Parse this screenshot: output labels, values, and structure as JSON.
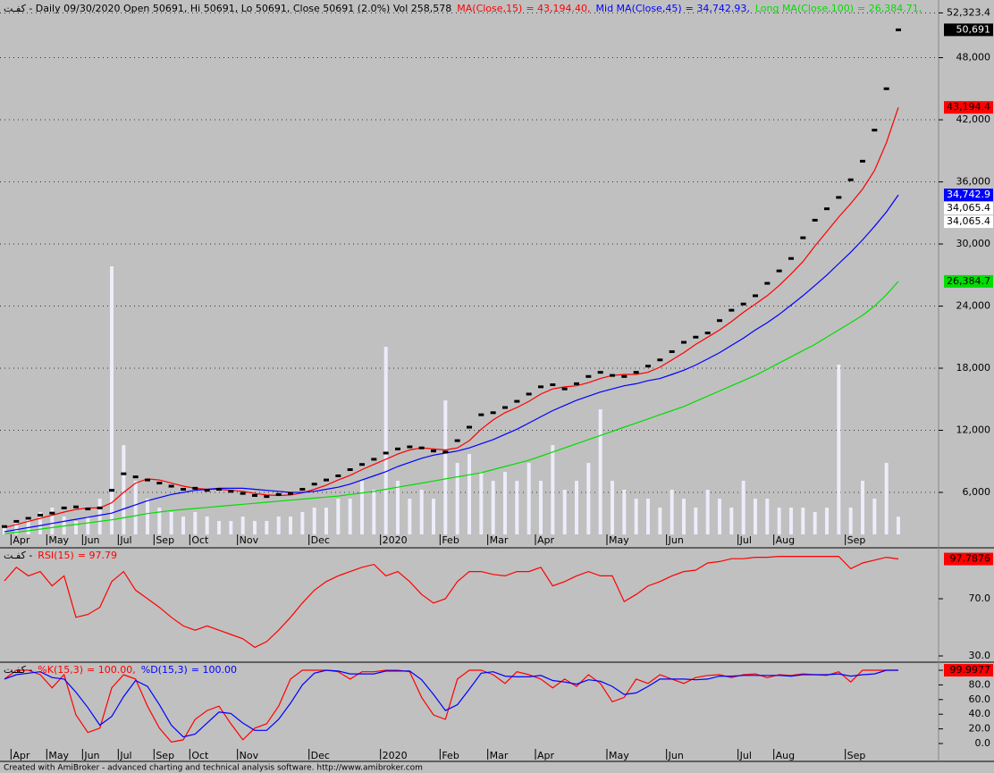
{
  "chart_data": [
    {
      "type": "price",
      "title": "كفـت - Daily 09/30/2020 Open 50691, Hi 50691, Lo 50691, Close 50691 (2.0%) Vol 258,578",
      "categories": [
        null,
        "Apr",
        null,
        null,
        "May",
        null,
        null,
        "Jun",
        null,
        null,
        "Jul",
        null,
        null,
        "Sep",
        null,
        null,
        "Oct",
        null,
        null,
        null,
        "Nov",
        null,
        null,
        null,
        null,
        null,
        "Dec",
        null,
        null,
        null,
        null,
        null,
        "2020",
        null,
        null,
        null,
        null,
        "Feb",
        null,
        null,
        null,
        "Mar",
        null,
        null,
        null,
        "Apr",
        null,
        null,
        null,
        null,
        null,
        "May",
        null,
        null,
        null,
        null,
        "Jun",
        null,
        null,
        null,
        null,
        null,
        "Jul",
        null,
        null,
        "Aug",
        null,
        null,
        null,
        null,
        null,
        "Sep",
        null,
        null,
        null,
        null
      ],
      "ylim": [
        1942,
        53400
      ],
      "yticks": [
        {
          "value": 6000,
          "label": "6,000"
        },
        {
          "value": 12000,
          "label": "12,000"
        },
        {
          "value": 18000,
          "label": "18,000"
        },
        {
          "value": 24000,
          "label": "24,000"
        },
        {
          "value": 30000,
          "label": "30,000"
        },
        {
          "value": 36000,
          "label": "36,000"
        },
        {
          "value": 42000,
          "label": "42,000"
        },
        {
          "value": 48000,
          "label": "48,000"
        },
        {
          "value": 52323.4,
          "label": "52,323.4"
        }
      ],
      "grid": true,
      "close": {
        "color": "#000000",
        "axis_label": "50,691",
        "values": [
          2700,
          3200,
          3500,
          3800,
          4000,
          4500,
          4600,
          4400,
          4500,
          6200,
          7800,
          7500,
          7200,
          6900,
          6600,
          6300,
          6400,
          6200,
          6300,
          6100,
          5900,
          5700,
          5600,
          5800,
          5900,
          6300,
          6800,
          7200,
          7600,
          8200,
          8700,
          9200,
          9800,
          10200,
          10400,
          10300,
          10000,
          9900,
          11000,
          12300,
          13500,
          13700,
          14200,
          14800,
          15500,
          16200,
          16400,
          16000,
          16500,
          17200,
          17600,
          17300,
          17200,
          17600,
          18200,
          18800,
          19600,
          20500,
          21000,
          21400,
          22600,
          23600,
          24200,
          25000,
          26200,
          27400,
          28600,
          30600,
          32300,
          33400,
          34500,
          36200,
          38000,
          41000,
          45000,
          50691
        ]
      },
      "volume": {
        "color": "#ececfa",
        "lim": [
          0,
          7750000
        ],
        "values": [
          130000,
          195000,
          260000,
          325000,
          390000,
          260000,
          195000,
          260000,
          520000,
          3900000,
          1300000,
          780000,
          520000,
          390000,
          325000,
          260000,
          325000,
          260000,
          195000,
          195000,
          260000,
          195000,
          195000,
          260000,
          260000,
          325000,
          390000,
          390000,
          520000,
          520000,
          780000,
          650000,
          2730000,
          780000,
          520000,
          650000,
          520000,
          1950000,
          1040000,
          1170000,
          910000,
          780000,
          910000,
          780000,
          1040000,
          780000,
          1300000,
          650000,
          780000,
          1040000,
          1820000,
          780000,
          650000,
          520000,
          520000,
          390000,
          650000,
          520000,
          390000,
          650000,
          520000,
          390000,
          780000,
          520000,
          520000,
          390000,
          390000,
          390000,
          325000,
          390000,
          2470000,
          390000,
          780000,
          520000,
          1040000,
          258578
        ]
      },
      "series": [
        {
          "name": "MA(Close,15)",
          "color": "#ff0000",
          "legend_value": "= 43,194.40,",
          "axis_label": "43,194.4",
          "values": [
            2600,
            2900,
            3200,
            3500,
            3800,
            4100,
            4350,
            4500,
            4500,
            5000,
            6000,
            6900,
            7300,
            7200,
            6900,
            6600,
            6400,
            6300,
            6300,
            6200,
            6100,
            5900,
            5750,
            5700,
            5750,
            5950,
            6300,
            6700,
            7200,
            7650,
            8200,
            8700,
            9200,
            9700,
            10100,
            10300,
            10200,
            10100,
            10300,
            11000,
            12100,
            13000,
            13700,
            14200,
            14800,
            15500,
            16000,
            16200,
            16300,
            16600,
            17000,
            17300,
            17400,
            17400,
            17600,
            18100,
            18800,
            19500,
            20300,
            21000,
            21700,
            22500,
            23400,
            24200,
            25000,
            26000,
            27100,
            28300,
            29800,
            31200,
            32600,
            33900,
            35300,
            37100,
            39800,
            43194.4
          ]
        },
        {
          "name": "Mid MA(Close,45)",
          "color": "#0000ff",
          "legend_value": "= 34,742.93,",
          "axis_label": "34,742.9",
          "values": [
            2200,
            2400,
            2600,
            2800,
            3000,
            3200,
            3400,
            3600,
            3800,
            4000,
            4400,
            4800,
            5200,
            5500,
            5800,
            6000,
            6200,
            6300,
            6400,
            6400,
            6400,
            6300,
            6200,
            6100,
            6000,
            6000,
            6100,
            6300,
            6500,
            6800,
            7200,
            7600,
            8000,
            8500,
            8900,
            9300,
            9600,
            9800,
            10000,
            10300,
            10700,
            11100,
            11600,
            12100,
            12700,
            13300,
            13900,
            14400,
            14900,
            15300,
            15700,
            16000,
            16300,
            16500,
            16800,
            17000,
            17400,
            17800,
            18300,
            18900,
            19500,
            20200,
            20900,
            21700,
            22400,
            23200,
            24100,
            25000,
            26000,
            27000,
            28100,
            29200,
            30400,
            31700,
            33100,
            34742.9
          ]
        },
        {
          "name": "Long MA(Close,100)",
          "color": "#00dd00",
          "legend_value": "= 26,384.71,",
          "axis_label": "26,384.7",
          "values": [
            2000,
            2150,
            2300,
            2450,
            2600,
            2750,
            2900,
            3050,
            3200,
            3350,
            3550,
            3750,
            3950,
            4100,
            4250,
            4350,
            4450,
            4550,
            4650,
            4750,
            4850,
            4950,
            5050,
            5150,
            5250,
            5350,
            5450,
            5550,
            5650,
            5800,
            5950,
            6100,
            6300,
            6500,
            6700,
            6900,
            7100,
            7300,
            7500,
            7700,
            7900,
            8200,
            8500,
            8800,
            9100,
            9500,
            9900,
            10300,
            10700,
            11100,
            11500,
            11900,
            12300,
            12700,
            13100,
            13500,
            13900,
            14300,
            14800,
            15300,
            15800,
            16300,
            16800,
            17300,
            17900,
            18500,
            19100,
            19700,
            20300,
            21000,
            21700,
            22400,
            23100,
            24000,
            25100,
            26384.7
          ]
        }
      ],
      "markers": [
        {
          "value": 34065.4,
          "label": "34,065.4"
        },
        {
          "value": 34065.4,
          "label": "34,065.4"
        }
      ]
    },
    {
      "type": "line",
      "title": "كفـت -",
      "ylim": [
        26.25,
        105
      ],
      "yticks": [
        {
          "value": 30,
          "label": "30.0"
        },
        {
          "value": 70,
          "label": "70.0"
        }
      ],
      "series": [
        {
          "name": "RSI(15)",
          "color": "#ff0000",
          "legend_value": "= 97.79",
          "axis_label": "97.7876",
          "values": [
            82.5,
            92,
            86,
            89,
            79,
            86,
            57,
            59,
            64,
            82,
            89,
            76,
            70,
            64,
            57,
            51,
            48,
            51,
            48,
            45,
            42,
            36,
            40,
            48,
            57,
            67,
            76,
            82,
            86,
            89,
            92,
            94,
            86,
            89,
            82,
            73,
            67,
            70,
            82,
            89,
            89,
            87,
            86,
            89,
            89,
            92,
            79,
            82,
            86,
            89,
            86,
            86,
            68,
            73,
            79,
            82,
            86,
            89,
            90,
            95,
            96,
            98,
            98,
            99,
            99,
            99.6,
            99.6,
            99.6,
            99.6,
            99.6,
            99.6,
            91,
            95,
            97,
            99,
            97.7876
          ]
        }
      ]
    },
    {
      "type": "line",
      "title": "كفـت -",
      "categories": [
        null,
        "Apr",
        null,
        null,
        "May",
        null,
        null,
        "Jun",
        null,
        null,
        "Jul",
        null,
        null,
        "Sep",
        null,
        null,
        "Oct",
        null,
        null,
        null,
        "Nov",
        null,
        null,
        null,
        null,
        null,
        "Dec",
        null,
        null,
        null,
        null,
        null,
        "2020",
        null,
        null,
        null,
        null,
        "Feb",
        null,
        null,
        null,
        "Mar",
        null,
        null,
        null,
        "Apr",
        null,
        null,
        null,
        null,
        null,
        "May",
        null,
        null,
        null,
        null,
        "Jun",
        null,
        null,
        null,
        null,
        null,
        "Jul",
        null,
        null,
        "Aug",
        null,
        null,
        null,
        null,
        null,
        "Sep",
        null,
        null,
        null,
        null
      ],
      "ylim": [
        -7.3,
        109.8
      ],
      "yticks": [
        {
          "value": 0,
          "label": "0.0"
        },
        {
          "value": 20,
          "label": "20.0"
        },
        {
          "value": 40,
          "label": "40.0"
        },
        {
          "value": 60,
          "label": "60.0"
        },
        {
          "value": 80,
          "label": "80.0"
        },
        {
          "value": 100,
          "label": "100.0"
        }
      ],
      "series": [
        {
          "name": "%K(15,3)",
          "color": "#ff0000",
          "legend_value": "= 100.00,",
          "axis_label": "99.9977",
          "values": [
            88,
            100,
            100,
            94,
            76,
            94,
            39,
            15,
            21,
            76,
            94,
            88,
            51,
            21,
            2,
            5,
            33,
            45,
            51,
            27,
            5,
            21,
            27,
            51,
            88,
            100,
            100,
            100,
            98,
            88,
            98,
            98,
            100,
            100,
            98,
            63,
            39,
            33,
            88,
            100,
            100,
            94,
            82,
            98,
            94,
            88,
            76,
            88,
            78,
            94,
            82,
            57,
            63,
            88,
            82,
            94,
            88,
            82,
            90,
            93,
            94,
            90,
            94,
            95,
            90,
            94,
            93,
            95,
            94,
            93,
            98,
            84,
            100,
            100,
            100,
            99.9977
          ]
        },
        {
          "name": "%D(15,3)",
          "color": "#0000ff",
          "legend_value": "= 100.00",
          "values": [
            88,
            94,
            96,
            98,
            90,
            88,
            70,
            49,
            25,
            37,
            64,
            86,
            78,
            53,
            25,
            9,
            13,
            28,
            43,
            41,
            28,
            18,
            18,
            33,
            55,
            80,
            96,
            100,
            99,
            95,
            95,
            95,
            99,
            99,
            99,
            87,
            67,
            45,
            53,
            74,
            96,
            98,
            92,
            91,
            91,
            93,
            86,
            84,
            81,
            87,
            85,
            78,
            67,
            69,
            78,
            88,
            88,
            88,
            87,
            88,
            92,
            92,
            93,
            93,
            93,
            93,
            92,
            94,
            94,
            94,
            95,
            92,
            94,
            95,
            100,
            100
          ]
        }
      ]
    }
  ],
  "footer": "Created with AmiBroker - advanced charting and technical analysis software. http://www.amibroker.com"
}
